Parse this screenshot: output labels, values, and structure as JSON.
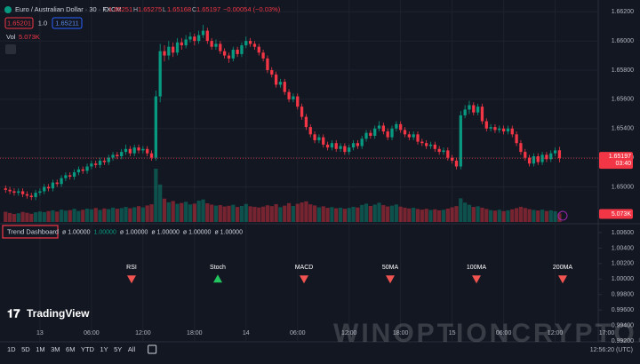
{
  "header": {
    "symbol": "Euro / Australian Dollar · 30 · FXCM",
    "ohlc_letters": [
      "O",
      "H",
      "L",
      "C"
    ],
    "change": "−0.00054 (−0.03%)",
    "sell": "1.65201",
    "spread": "1.0",
    "buy": "1.65211",
    "volume_name": "Vol"
  },
  "chart_data": {
    "type": "candlestick",
    "up_color": "#089981",
    "down_color": "#f23645",
    "grid": true,
    "xlim": [
      -1.3,
      146.1
    ],
    "xticks": [
      {
        "value": 8,
        "label": "13"
      },
      {
        "value": 20,
        "label": "06:00"
      },
      {
        "value": 32,
        "label": "12:00"
      },
      {
        "value": 44,
        "label": "18:00"
      },
      {
        "value": 56,
        "label": "14"
      },
      {
        "value": 68,
        "label": "06:00"
      },
      {
        "value": 80,
        "label": "12:00"
      },
      {
        "value": 92,
        "label": "18:00"
      },
      {
        "value": 104,
        "label": "15"
      },
      {
        "value": 116,
        "label": "06:00"
      },
      {
        "value": 128,
        "label": "12:00"
      },
      {
        "value": 140,
        "label": "17:00"
      }
    ],
    "ylim": [
      1.6476,
      1.6625
    ],
    "yticks": [
      {
        "value": 1.662,
        "label": "1.66200"
      },
      {
        "value": 1.66,
        "label": "1.66000"
      },
      {
        "value": 1.658,
        "label": "1.65800"
      },
      {
        "value": 1.656,
        "label": "1.65600"
      },
      {
        "value": 1.654,
        "label": "1.65400"
      },
      {
        "value": 1.652,
        "label": "1.65200"
      },
      {
        "value": 1.65,
        "label": "1.65000"
      }
    ],
    "volume_lim": [
      0,
      64
    ],
    "volume_value_label": "5.073K",
    "countdown": "03:40",
    "open": [
      1.6499,
      1.6498,
      1.6497,
      1.6496,
      1.6497,
      1.6495,
      1.6494,
      1.6493,
      1.6496,
      1.6497,
      1.65,
      1.6499,
      1.6503,
      1.6502,
      1.6506,
      1.6508,
      1.6507,
      1.651,
      1.6512,
      1.6511,
      1.6514,
      1.6516,
      1.6515,
      1.6518,
      1.6517,
      1.652,
      1.6522,
      1.6521,
      1.6524,
      1.6526,
      1.6523,
      1.6527,
      1.6525,
      1.6526,
      1.6523,
      1.652,
      1.6562,
      1.6593,
      1.659,
      1.6596,
      1.6592,
      1.6599,
      1.6597,
      1.6601,
      1.6603,
      1.66,
      1.6604,
      1.6607,
      1.66,
      1.6596,
      1.6598,
      1.6593,
      1.659,
      1.6588,
      1.6594,
      1.6591,
      1.6597,
      1.66,
      1.6598,
      1.6596,
      1.6592,
      1.6588,
      1.658,
      1.6577,
      1.657,
      1.6572,
      1.6565,
      1.656,
      1.6562,
      1.6555,
      1.6548,
      1.6541,
      1.6536,
      1.6532,
      1.6534,
      1.6529,
      1.6527,
      1.653,
      1.6526,
      1.6528,
      1.6524,
      1.6527,
      1.653,
      1.6528,
      1.6533,
      1.6537,
      1.6535,
      1.654,
      1.6542,
      1.6538,
      1.6534,
      1.654,
      1.6543,
      1.6539,
      1.6536,
      1.6534,
      1.6536,
      1.6531,
      1.653,
      1.6528,
      1.6529,
      1.6526,
      1.6524,
      1.6525,
      1.652,
      1.6518,
      1.6514,
      1.6549,
      1.6553,
      1.6556,
      1.6551,
      1.6555,
      1.6545,
      1.654,
      1.6541,
      1.6539,
      1.654,
      1.6538,
      1.654,
      1.6536,
      1.653,
      1.6524,
      1.652,
      1.6516,
      1.6521,
      1.6517,
      1.6522,
      1.6519,
      1.6523,
      1.65251
    ],
    "high": [
      1.6501,
      1.65,
      1.6499,
      1.6499,
      1.6499,
      1.6497,
      1.6496,
      1.6498,
      1.6499,
      1.6502,
      1.6502,
      1.6505,
      1.6505,
      1.6508,
      1.651,
      1.651,
      1.6512,
      1.6514,
      1.6514,
      1.6516,
      1.6518,
      1.6518,
      1.652,
      1.652,
      1.6522,
      1.6524,
      1.6524,
      1.6526,
      1.6529,
      1.6528,
      1.6529,
      1.6529,
      1.6528,
      1.6528,
      1.6525,
      1.6566,
      1.6598,
      1.6597,
      1.66,
      1.6599,
      1.6602,
      1.6602,
      1.6604,
      1.6606,
      1.6605,
      1.6607,
      1.6611,
      1.6609,
      1.6602,
      1.6601,
      1.66,
      1.6595,
      1.6592,
      1.6596,
      1.6596,
      1.6599,
      1.6603,
      1.6602,
      1.66,
      1.6598,
      1.6594,
      1.659,
      1.6582,
      1.6579,
      1.6574,
      1.6574,
      1.6567,
      1.6564,
      1.6564,
      1.6557,
      1.655,
      1.6543,
      1.6538,
      1.6536,
      1.6536,
      1.6531,
      1.6532,
      1.6532,
      1.653,
      1.653,
      1.6529,
      1.6532,
      1.6532,
      1.6535,
      1.6539,
      1.6539,
      1.6542,
      1.6545,
      1.6544,
      1.654,
      1.6542,
      1.6545,
      1.6545,
      1.6541,
      1.6538,
      1.6538,
      1.6538,
      1.6533,
      1.6532,
      1.6531,
      1.6531,
      1.6528,
      1.6527,
      1.6527,
      1.6522,
      1.652,
      1.6552,
      1.6556,
      1.6559,
      1.6558,
      1.6557,
      1.6557,
      1.6547,
      1.6543,
      1.6543,
      1.6542,
      1.6542,
      1.6542,
      1.6542,
      1.6538,
      1.6532,
      1.6526,
      1.6522,
      1.6523,
      1.6523,
      1.6524,
      1.6524,
      1.6525,
      1.6527,
      1.65275
    ],
    "low": [
      1.6496,
      1.6495,
      1.6494,
      1.6494,
      1.6493,
      1.6492,
      1.6491,
      1.6491,
      1.6494,
      1.6495,
      1.6497,
      1.6497,
      1.65,
      1.65,
      1.6504,
      1.6505,
      1.6505,
      1.6508,
      1.6509,
      1.6509,
      1.6512,
      1.6513,
      1.6513,
      1.6515,
      1.6515,
      1.6518,
      1.6519,
      1.6519,
      1.6522,
      1.6521,
      1.6521,
      1.6523,
      1.6523,
      1.6521,
      1.6518,
      1.6518,
      1.6558,
      1.6586,
      1.6587,
      1.6589,
      1.659,
      1.6594,
      1.6595,
      1.6599,
      1.6597,
      1.6598,
      1.6602,
      1.6598,
      1.6594,
      1.6594,
      1.6591,
      1.6588,
      1.6585,
      1.6586,
      1.6589,
      1.6589,
      1.6595,
      1.6596,
      1.6594,
      1.659,
      1.6586,
      1.6578,
      1.6575,
      1.6568,
      1.6568,
      1.6563,
      1.6558,
      1.6558,
      1.6553,
      1.6546,
      1.6539,
      1.6534,
      1.653,
      1.653,
      1.6527,
      1.6525,
      1.6525,
      1.6524,
      1.6524,
      1.6522,
      1.6522,
      1.6525,
      1.6526,
      1.6526,
      1.6531,
      1.6533,
      1.6533,
      1.6538,
      1.6536,
      1.6532,
      1.6532,
      1.6538,
      1.6537,
      1.6534,
      1.6532,
      1.6532,
      1.6529,
      1.6528,
      1.6526,
      1.6526,
      1.6524,
      1.6522,
      1.6522,
      1.6518,
      1.6516,
      1.6512,
      1.6512,
      1.6547,
      1.655,
      1.6549,
      1.6549,
      1.6543,
      1.6538,
      1.6538,
      1.6537,
      1.6537,
      1.6536,
      1.6536,
      1.6534,
      1.6528,
      1.6522,
      1.6518,
      1.6514,
      1.6514,
      1.6515,
      1.6515,
      1.6517,
      1.6517,
      1.6521,
      1.65168
    ],
    "close": [
      1.6498,
      1.6497,
      1.6496,
      1.6497,
      1.6495,
      1.6494,
      1.6493,
      1.6496,
      1.6497,
      1.65,
      1.6499,
      1.6503,
      1.6502,
      1.6506,
      1.6508,
      1.6507,
      1.651,
      1.6512,
      1.6511,
      1.6514,
      1.6516,
      1.6515,
      1.6518,
      1.6517,
      1.652,
      1.6522,
      1.6521,
      1.6524,
      1.6526,
      1.6523,
      1.6527,
      1.6525,
      1.6526,
      1.6523,
      1.652,
      1.6562,
      1.6593,
      1.659,
      1.6596,
      1.6592,
      1.6599,
      1.6597,
      1.6601,
      1.6603,
      1.66,
      1.6604,
      1.6607,
      1.66,
      1.6596,
      1.6598,
      1.6593,
      1.659,
      1.6588,
      1.6594,
      1.6591,
      1.6597,
      1.66,
      1.6598,
      1.6596,
      1.6592,
      1.6588,
      1.658,
      1.6577,
      1.657,
      1.6572,
      1.6565,
      1.656,
      1.6562,
      1.6555,
      1.6548,
      1.6541,
      1.6536,
      1.6532,
      1.6534,
      1.6529,
      1.6527,
      1.653,
      1.6526,
      1.6528,
      1.6524,
      1.6527,
      1.653,
      1.6528,
      1.6533,
      1.6537,
      1.6535,
      1.654,
      1.6542,
      1.6538,
      1.6534,
      1.654,
      1.6543,
      1.6539,
      1.6536,
      1.6534,
      1.6536,
      1.6531,
      1.653,
      1.6528,
      1.6529,
      1.6526,
      1.6524,
      1.6525,
      1.652,
      1.6518,
      1.6514,
      1.6549,
      1.6553,
      1.6556,
      1.6551,
      1.6555,
      1.6545,
      1.654,
      1.6541,
      1.6539,
      1.654,
      1.6538,
      1.654,
      1.6536,
      1.653,
      1.6524,
      1.652,
      1.6516,
      1.6521,
      1.6517,
      1.6522,
      1.6519,
      1.6523,
      1.6525,
      1.65197
    ],
    "volume": [
      6.1,
      5.4,
      4.8,
      5.2,
      6.0,
      5.5,
      4.9,
      5.8,
      6.3,
      5.9,
      6.5,
      7.0,
      6.2,
      7.4,
      6.8,
      7.1,
      7.9,
      6.6,
      7.3,
      8.0,
      7.6,
      8.4,
      7.2,
      8.1,
      7.7,
      8.6,
      7.9,
      8.3,
      9.0,
      8.2,
      8.8,
      9.5,
      8.7,
      9.9,
      10.6,
      32.0,
      22.5,
      14.0,
      11.8,
      12.6,
      10.9,
      11.4,
      12.1,
      10.5,
      11.0,
      12.8,
      13.5,
      11.2,
      10.4,
      9.8,
      10.1,
      9.3,
      9.7,
      10.3,
      9.0,
      9.6,
      10.8,
      9.4,
      9.1,
      8.7,
      9.2,
      10.0,
      9.5,
      10.7,
      8.9,
      9.8,
      11.3,
      9.6,
      10.9,
      11.7,
      12.4,
      10.6,
      9.9,
      8.8,
      9.4,
      8.5,
      8.9,
      8.2,
      8.6,
      7.9,
      8.4,
      9.1,
      8.7,
      10.2,
      11.0,
      9.6,
      10.4,
      11.5,
      10.1,
      9.3,
      9.8,
      10.5,
      9.2,
      8.6,
      8.1,
      8.5,
      7.8,
      7.4,
      7.9,
      7.2,
      7.6,
      7.0,
      7.3,
      8.0,
      8.8,
      9.5,
      14.2,
      11.6,
      10.3,
      9.0,
      9.4,
      8.6,
      7.8,
      7.1,
      6.8,
      7.3,
      6.5,
      7.0,
      7.6,
      8.3,
      9.1,
      8.4,
      7.7,
      7.2,
      6.9,
      7.4,
      6.6,
      7.0,
      6.4,
      5.073
    ]
  },
  "dashboard": {
    "title": "Trend Dashboard",
    "readout": [
      "ø 1.00000",
      "1.00000",
      "ø 1.00000",
      "ø 1.00000",
      "ø 1.00000",
      "ø 1.00000"
    ],
    "ylim": [
      0.99108,
      1.00692
    ],
    "yticks": [
      {
        "value": 1.006,
        "label": "1.00600"
      },
      {
        "value": 1.004,
        "label": "1.00400"
      },
      {
        "value": 1.002,
        "label": "1.00200"
      },
      {
        "value": 1,
        "label": "1.00000"
      },
      {
        "value": 0.998,
        "label": "0.99800"
      },
      {
        "value": 0.996,
        "label": "0.99600"
      },
      {
        "value": 0.994,
        "label": "0.99400"
      },
      {
        "value": 0.992,
        "label": "0.99200"
      }
    ],
    "signals": [
      {
        "name": "RSI",
        "value": 1,
        "direction": "down"
      },
      {
        "name": "Stoch",
        "value": 1,
        "direction": "up"
      },
      {
        "name": "MACD",
        "value": 1,
        "direction": "down"
      },
      {
        "name": "50MA",
        "value": 1,
        "direction": "down"
      },
      {
        "name": "100MA",
        "value": 1,
        "direction": "down"
      },
      {
        "name": "200MA",
        "value": 1,
        "direction": "down"
      }
    ]
  },
  "footer": {
    "logo": "TradingView",
    "watermark": "WINOPTIONCRYPTO.COM",
    "ranges": [
      "1D",
      "5D",
      "1M",
      "3M",
      "6M",
      "YTD",
      "1Y",
      "5Y",
      "All"
    ],
    "clock": "12:56:20 (UTC)"
  }
}
